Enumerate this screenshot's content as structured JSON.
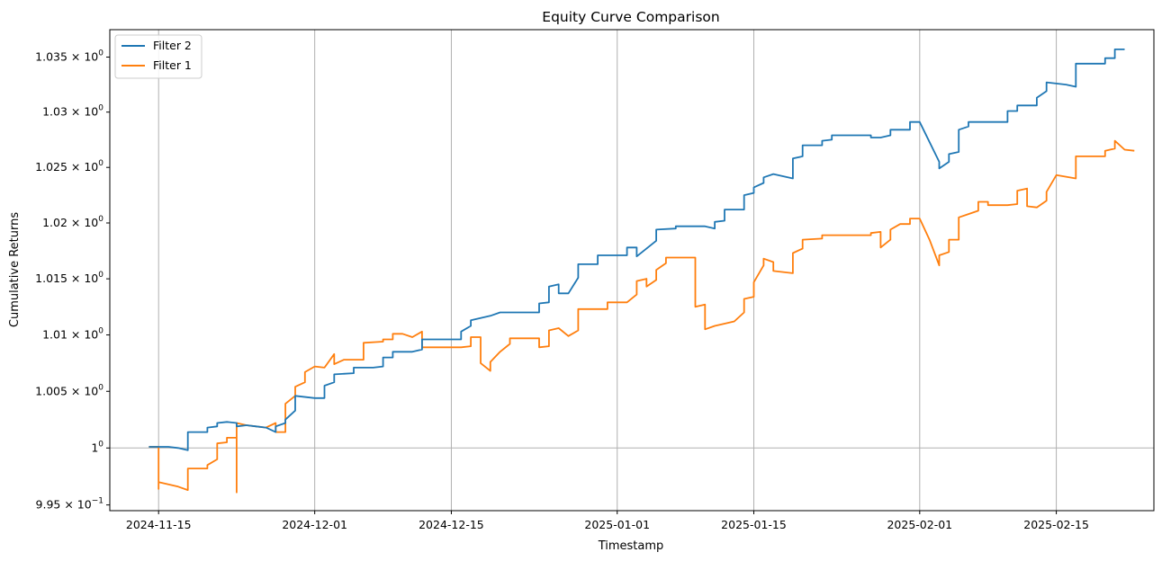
{
  "chart_data": {
    "type": "line",
    "title": "Equity Curve Comparison",
    "xlabel": "Timestamp",
    "ylabel": "Cumulative Returns",
    "yscale": "log",
    "grid": "vertical-only",
    "legend_placement": "top-left",
    "xlim": [
      "2024-11-10",
      "2025-02-25"
    ],
    "ylim": [
      0.9945,
      1.0375
    ],
    "x_ticks": [
      {
        "date": "2024-11-15",
        "label": "2024-11-15"
      },
      {
        "date": "2024-12-01",
        "label": "2024-12-01"
      },
      {
        "date": "2024-12-15",
        "label": "2024-12-15"
      },
      {
        "date": "2025-01-01",
        "label": "2025-01-01"
      },
      {
        "date": "2025-01-15",
        "label": "2025-01-15"
      },
      {
        "date": "2025-02-01",
        "label": "2025-02-01"
      },
      {
        "date": "2025-02-15",
        "label": "2025-02-15"
      }
    ],
    "y_ticks": [
      {
        "value": 0.995,
        "mant": "9.95",
        "exp": "−1"
      },
      {
        "value": 1.0,
        "mant": "1",
        "exp": "0"
      },
      {
        "value": 1.005,
        "mant": "1.005",
        "exp": "0"
      },
      {
        "value": 1.01,
        "mant": "1.01",
        "exp": "0"
      },
      {
        "value": 1.015,
        "mant": "1.015",
        "exp": "0"
      },
      {
        "value": 1.02,
        "mant": "1.02",
        "exp": "0"
      },
      {
        "value": 1.025,
        "mant": "1.025",
        "exp": "0"
      },
      {
        "value": 1.03,
        "mant": "1.03",
        "exp": "0"
      },
      {
        "value": 1.035,
        "mant": "1.035",
        "exp": "0"
      }
    ],
    "reference_line": 1.0,
    "series": [
      {
        "name": "Filter 2",
        "color": "#1f77b4",
        "points": [
          [
            "2024-11-14",
            1.0001
          ],
          [
            "2024-11-16",
            1.0001
          ],
          [
            "2024-11-17",
            1.0
          ],
          [
            "2024-11-18",
            0.9998
          ],
          [
            "2024-11-18",
            1.0014
          ],
          [
            "2024-11-20",
            1.0014
          ],
          [
            "2024-11-20",
            1.0018
          ],
          [
            "2024-11-21",
            1.0019
          ],
          [
            "2024-11-21",
            1.0022
          ],
          [
            "2024-11-22",
            1.0023
          ],
          [
            "2024-11-23",
            1.0022
          ],
          [
            "2024-11-23",
            1.0019
          ],
          [
            "2024-11-24",
            1.002
          ],
          [
            "2024-11-25",
            1.0019
          ],
          [
            "2024-11-26",
            1.0018
          ],
          [
            "2024-11-27",
            1.0014
          ],
          [
            "2024-11-27",
            1.0019
          ],
          [
            "2024-11-28",
            1.0022
          ],
          [
            "2024-11-28",
            1.0025
          ],
          [
            "2024-11-29",
            1.0033
          ],
          [
            "2024-11-29",
            1.0046
          ],
          [
            "2024-12-01",
            1.0044
          ],
          [
            "2024-12-02",
            1.0044
          ],
          [
            "2024-12-02",
            1.0055
          ],
          [
            "2024-12-03",
            1.0058
          ],
          [
            "2024-12-03",
            1.0065
          ],
          [
            "2024-12-05",
            1.0066
          ],
          [
            "2024-12-05",
            1.0071
          ],
          [
            "2024-12-07",
            1.0071
          ],
          [
            "2024-12-08",
            1.0072
          ],
          [
            "2024-12-08",
            1.008
          ],
          [
            "2024-12-09",
            1.008
          ],
          [
            "2024-12-09",
            1.0085
          ],
          [
            "2024-12-11",
            1.0085
          ],
          [
            "2024-12-12",
            1.0087
          ],
          [
            "2024-12-12",
            1.0096
          ],
          [
            "2024-12-16",
            1.0096
          ],
          [
            "2024-12-16",
            1.0103
          ],
          [
            "2024-12-17",
            1.0108
          ],
          [
            "2024-12-17",
            1.0113
          ],
          [
            "2024-12-19",
            1.0117
          ],
          [
            "2024-12-20",
            1.012
          ],
          [
            "2024-12-24",
            1.012
          ],
          [
            "2024-12-24",
            1.0128
          ],
          [
            "2024-12-25",
            1.0129
          ],
          [
            "2024-12-25",
            1.0143
          ],
          [
            "2024-12-26",
            1.0145
          ],
          [
            "2024-12-26",
            1.0137
          ],
          [
            "2024-12-27",
            1.0137
          ],
          [
            "2024-12-28",
            1.0151
          ],
          [
            "2024-12-28",
            1.0163
          ],
          [
            "2024-12-30",
            1.0163
          ],
          [
            "2024-12-30",
            1.0171
          ],
          [
            "2025-01-02",
            1.0171
          ],
          [
            "2025-01-02",
            1.0178
          ],
          [
            "2025-01-03",
            1.0178
          ],
          [
            "2025-01-03",
            1.017
          ],
          [
            "2025-01-05",
            1.0184
          ],
          [
            "2025-01-05",
            1.0194
          ],
          [
            "2025-01-07",
            1.0195
          ],
          [
            "2025-01-07",
            1.0197
          ],
          [
            "2025-01-09",
            1.0197
          ],
          [
            "2025-01-10",
            1.0197
          ],
          [
            "2025-01-11",
            1.0195
          ],
          [
            "2025-01-11",
            1.0201
          ],
          [
            "2025-01-12",
            1.0202
          ],
          [
            "2025-01-12",
            1.0212
          ],
          [
            "2025-01-14",
            1.0212
          ],
          [
            "2025-01-14",
            1.0225
          ],
          [
            "2025-01-15",
            1.0227
          ],
          [
            "2025-01-15",
            1.0232
          ],
          [
            "2025-01-16",
            1.0236
          ],
          [
            "2025-01-16",
            1.0241
          ],
          [
            "2025-01-17",
            1.0244
          ],
          [
            "2025-01-19",
            1.024
          ],
          [
            "2025-01-19",
            1.0258
          ],
          [
            "2025-01-20",
            1.026
          ],
          [
            "2025-01-20",
            1.027
          ],
          [
            "2025-01-22",
            1.027
          ],
          [
            "2025-01-22",
            1.0274
          ],
          [
            "2025-01-23",
            1.0275
          ],
          [
            "2025-01-23",
            1.0279
          ],
          [
            "2025-01-27",
            1.0279
          ],
          [
            "2025-01-27",
            1.0277
          ],
          [
            "2025-01-28",
            1.0277
          ],
          [
            "2025-01-29",
            1.0279
          ],
          [
            "2025-01-29",
            1.0284
          ],
          [
            "2025-01-31",
            1.0284
          ],
          [
            "2025-01-31",
            1.0291
          ],
          [
            "2025-02-01",
            1.0291
          ],
          [
            "2025-02-03",
            1.0255
          ],
          [
            "2025-02-03",
            1.0249
          ],
          [
            "2025-02-04",
            1.0255
          ],
          [
            "2025-02-04",
            1.0262
          ],
          [
            "2025-02-05",
            1.0264
          ],
          [
            "2025-02-05",
            1.0284
          ],
          [
            "2025-02-06",
            1.0287
          ],
          [
            "2025-02-06",
            1.0291
          ],
          [
            "2025-02-10",
            1.0291
          ],
          [
            "2025-02-10",
            1.0301
          ],
          [
            "2025-02-11",
            1.0301
          ],
          [
            "2025-02-11",
            1.0306
          ],
          [
            "2025-02-13",
            1.0306
          ],
          [
            "2025-02-13",
            1.0313
          ],
          [
            "2025-02-14",
            1.0319
          ],
          [
            "2025-02-14",
            1.0327
          ],
          [
            "2025-02-16",
            1.0325
          ],
          [
            "2025-02-17",
            1.0323
          ],
          [
            "2025-02-17",
            1.0344
          ],
          [
            "2025-02-20",
            1.0344
          ],
          [
            "2025-02-20",
            1.0349
          ],
          [
            "2025-02-21",
            1.0349
          ],
          [
            "2025-02-21",
            1.0357
          ],
          [
            "2025-02-22",
            1.0357
          ]
        ]
      },
      {
        "name": "Filter 1",
        "color": "#ff7f0e",
        "points": [
          [
            "2024-11-14",
            1.0001
          ],
          [
            "2024-11-15",
            1.0001
          ],
          [
            "2024-11-15",
            0.9964
          ],
          [
            "2024-11-15",
            0.997
          ],
          [
            "2024-11-17",
            0.9966
          ],
          [
            "2024-11-18",
            0.9963
          ],
          [
            "2024-11-18",
            0.9982
          ],
          [
            "2024-11-20",
            0.9982
          ],
          [
            "2024-11-20",
            0.9985
          ],
          [
            "2024-11-21",
            0.999
          ],
          [
            "2024-11-21",
            1.0004
          ],
          [
            "2024-11-22",
            1.0005
          ],
          [
            "2024-11-22",
            1.0009
          ],
          [
            "2024-11-23",
            1.0009
          ],
          [
            "2024-11-23",
            0.9961
          ],
          [
            "2024-11-23",
            1.0022
          ],
          [
            "2024-11-24",
            1.002
          ],
          [
            "2024-11-25",
            1.0019
          ],
          [
            "2024-11-26",
            1.0018
          ],
          [
            "2024-11-27",
            1.0022
          ],
          [
            "2024-11-27",
            1.0014
          ],
          [
            "2024-11-28",
            1.0014
          ],
          [
            "2024-11-28",
            1.0039
          ],
          [
            "2024-11-29",
            1.0046
          ],
          [
            "2024-11-29",
            1.0054
          ],
          [
            "2024-11-30",
            1.0058
          ],
          [
            "2024-11-30",
            1.0067
          ],
          [
            "2024-12-01",
            1.0072
          ],
          [
            "2024-12-02",
            1.0071
          ],
          [
            "2024-12-03",
            1.0083
          ],
          [
            "2024-12-03",
            1.0074
          ],
          [
            "2024-12-04",
            1.0078
          ],
          [
            "2024-12-04",
            1.0078
          ],
          [
            "2024-12-06",
            1.0078
          ],
          [
            "2024-12-06",
            1.0093
          ],
          [
            "2024-12-08",
            1.0094
          ],
          [
            "2024-12-08",
            1.0096
          ],
          [
            "2024-12-09",
            1.0096
          ],
          [
            "2024-12-09",
            1.0101
          ],
          [
            "2024-12-10",
            1.0101
          ],
          [
            "2024-12-11",
            1.0098
          ],
          [
            "2024-12-12",
            1.0103
          ],
          [
            "2024-12-12",
            1.0089
          ],
          [
            "2024-12-13",
            1.0089
          ],
          [
            "2024-12-16",
            1.0089
          ],
          [
            "2024-12-17",
            1.009
          ],
          [
            "2024-12-17",
            1.0098
          ],
          [
            "2024-12-18",
            1.0098
          ],
          [
            "2024-12-18",
            1.0075
          ],
          [
            "2024-12-19",
            1.0068
          ],
          [
            "2024-12-19",
            1.0076
          ],
          [
            "2024-12-20",
            1.0085
          ],
          [
            "2024-12-21",
            1.0092
          ],
          [
            "2024-12-21",
            1.0097
          ],
          [
            "2024-12-24",
            1.0097
          ],
          [
            "2024-12-24",
            1.0089
          ],
          [
            "2024-12-25",
            1.009
          ],
          [
            "2024-12-25",
            1.0104
          ],
          [
            "2024-12-26",
            1.0106
          ],
          [
            "2024-12-27",
            1.0099
          ],
          [
            "2024-12-28",
            1.0104
          ],
          [
            "2024-12-28",
            1.0123
          ],
          [
            "2024-12-31",
            1.0123
          ],
          [
            "2024-12-31",
            1.0129
          ],
          [
            "2025-01-02",
            1.0129
          ],
          [
            "2025-01-03",
            1.0136
          ],
          [
            "2025-01-03",
            1.0148
          ],
          [
            "2025-01-04",
            1.015
          ],
          [
            "2025-01-04",
            1.0143
          ],
          [
            "2025-01-05",
            1.0149
          ],
          [
            "2025-01-05",
            1.0158
          ],
          [
            "2025-01-06",
            1.0164
          ],
          [
            "2025-01-06",
            1.0169
          ],
          [
            "2025-01-09",
            1.0169
          ],
          [
            "2025-01-09",
            1.0125
          ],
          [
            "2025-01-10",
            1.0127
          ],
          [
            "2025-01-10",
            1.0105
          ],
          [
            "2025-01-11",
            1.0108
          ],
          [
            "2025-01-12",
            1.011
          ],
          [
            "2025-01-13",
            1.0112
          ],
          [
            "2025-01-14",
            1.012
          ],
          [
            "2025-01-14",
            1.0132
          ],
          [
            "2025-01-15",
            1.0134
          ],
          [
            "2025-01-15",
            1.0147
          ],
          [
            "2025-01-16",
            1.0162
          ],
          [
            "2025-01-16",
            1.0168
          ],
          [
            "2025-01-17",
            1.0165
          ],
          [
            "2025-01-17",
            1.0157
          ],
          [
            "2025-01-19",
            1.0155
          ],
          [
            "2025-01-19",
            1.0173
          ],
          [
            "2025-01-20",
            1.0177
          ],
          [
            "2025-01-20",
            1.0185
          ],
          [
            "2025-01-22",
            1.0186
          ],
          [
            "2025-01-22",
            1.0189
          ],
          [
            "2025-01-27",
            1.0189
          ],
          [
            "2025-01-27",
            1.0191
          ],
          [
            "2025-01-28",
            1.0192
          ],
          [
            "2025-01-28",
            1.0178
          ],
          [
            "2025-01-29",
            1.0185
          ],
          [
            "2025-01-29",
            1.0194
          ],
          [
            "2025-01-30",
            1.0199
          ],
          [
            "2025-01-31",
            1.0199
          ],
          [
            "2025-01-31",
            1.0204
          ],
          [
            "2025-02-01",
            1.0204
          ],
          [
            "2025-02-02",
            1.0185
          ],
          [
            "2025-02-03",
            1.0162
          ],
          [
            "2025-02-03",
            1.0171
          ],
          [
            "2025-02-04",
            1.0174
          ],
          [
            "2025-02-04",
            1.0185
          ],
          [
            "2025-02-05",
            1.0185
          ],
          [
            "2025-02-05",
            1.0205
          ],
          [
            "2025-02-06",
            1.0208
          ],
          [
            "2025-02-07",
            1.0211
          ],
          [
            "2025-02-07",
            1.0219
          ],
          [
            "2025-02-08",
            1.0219
          ],
          [
            "2025-02-08",
            1.0216
          ],
          [
            "2025-02-10",
            1.0216
          ],
          [
            "2025-02-11",
            1.0217
          ],
          [
            "2025-02-11",
            1.0229
          ],
          [
            "2025-02-12",
            1.0231
          ],
          [
            "2025-02-12",
            1.0215
          ],
          [
            "2025-02-13",
            1.0214
          ],
          [
            "2025-02-14",
            1.022
          ],
          [
            "2025-02-14",
            1.0228
          ],
          [
            "2025-02-15",
            1.0243
          ],
          [
            "2025-02-17",
            1.024
          ],
          [
            "2025-02-17",
            1.026
          ],
          [
            "2025-02-20",
            1.026
          ],
          [
            "2025-02-20",
            1.0265
          ],
          [
            "2025-02-21",
            1.0267
          ],
          [
            "2025-02-21",
            1.0274
          ],
          [
            "2025-02-22",
            1.0266
          ],
          [
            "2025-02-23",
            1.0265
          ]
        ]
      }
    ]
  }
}
